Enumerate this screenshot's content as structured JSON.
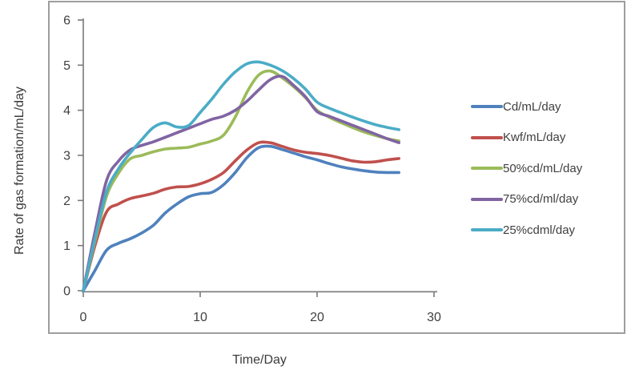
{
  "figure": {
    "frame_border_color": "#9d9d9d",
    "background": "#ffffff",
    "axis_line_color": "#7a7a7a",
    "tick_label_color": "#404040"
  },
  "chart_data": {
    "type": "line",
    "title": "",
    "xlabel": "Time/Day",
    "ylabel": "Rate of gas formation/mL/day",
    "xlim": [
      0,
      30
    ],
    "ylim": [
      0,
      6
    ],
    "xticks": [
      0,
      10,
      20,
      30
    ],
    "yticks": [
      0,
      1,
      2,
      3,
      4,
      5,
      6
    ],
    "grid": false,
    "smooth_lines": true,
    "legend_position": "right",
    "x": [
      0,
      1,
      2,
      3,
      4,
      5,
      6,
      7,
      8,
      9,
      10,
      11,
      12,
      13,
      14,
      15,
      16,
      17,
      18,
      19,
      20,
      21,
      22,
      23,
      24,
      25,
      26,
      27
    ],
    "series": [
      {
        "name": "Cd/mL/day",
        "color": "#4f81bd",
        "values": [
          0,
          0.45,
          0.9,
          1.05,
          1.15,
          1.28,
          1.45,
          1.72,
          1.92,
          2.08,
          2.15,
          2.18,
          2.35,
          2.62,
          2.95,
          3.17,
          3.2,
          3.13,
          3.05,
          2.97,
          2.9,
          2.82,
          2.75,
          2.7,
          2.66,
          2.63,
          2.62,
          2.62
        ]
      },
      {
        "name": "Kwf/mL/day",
        "color": "#c0504d",
        "values": [
          0,
          1.0,
          1.75,
          1.92,
          2.04,
          2.1,
          2.16,
          2.25,
          2.3,
          2.31,
          2.37,
          2.47,
          2.62,
          2.88,
          3.12,
          3.28,
          3.28,
          3.2,
          3.12,
          3.07,
          3.04,
          3.0,
          2.94,
          2.88,
          2.85,
          2.86,
          2.9,
          2.93
        ]
      },
      {
        "name": "50%cd/mL/day",
        "color": "#9bbb59",
        "values": [
          0,
          1.1,
          2.1,
          2.6,
          2.92,
          3.0,
          3.08,
          3.14,
          3.16,
          3.18,
          3.25,
          3.32,
          3.45,
          3.85,
          4.4,
          4.78,
          4.87,
          4.72,
          4.52,
          4.28,
          4.0,
          3.85,
          3.73,
          3.62,
          3.52,
          3.44,
          3.37,
          3.32
        ]
      },
      {
        "name": "75%cd/ml/day",
        "color": "#8064a2",
        "values": [
          0,
          1.3,
          2.45,
          2.87,
          3.12,
          3.22,
          3.3,
          3.4,
          3.5,
          3.6,
          3.7,
          3.8,
          3.87,
          4.0,
          4.2,
          4.45,
          4.68,
          4.75,
          4.55,
          4.3,
          3.97,
          3.87,
          3.77,
          3.67,
          3.57,
          3.47,
          3.37,
          3.28
        ]
      },
      {
        "name": "25%cdml/day",
        "color": "#4bacc6",
        "values": [
          0,
          1.15,
          2.2,
          2.7,
          3.05,
          3.35,
          3.62,
          3.72,
          3.63,
          3.66,
          3.95,
          4.25,
          4.58,
          4.85,
          5.03,
          5.07,
          5.0,
          4.88,
          4.7,
          4.47,
          4.18,
          4.05,
          3.95,
          3.85,
          3.76,
          3.68,
          3.62,
          3.57
        ]
      }
    ]
  }
}
